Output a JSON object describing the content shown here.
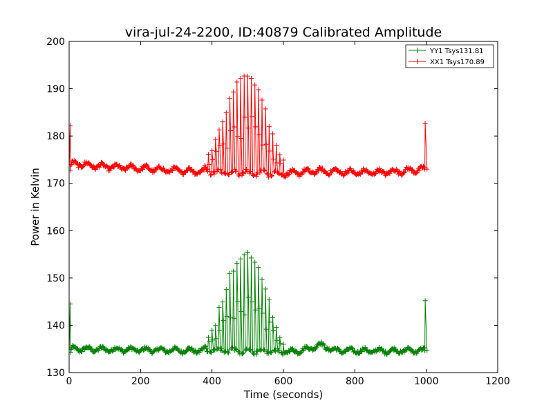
{
  "chart_data": {
    "type": "line",
    "title": "vira-jul-24-2200, ID:40879 Calibrated Amplitude",
    "xlabel": "Time (seconds)",
    "ylabel": "Power in Kelvin",
    "xlim": [
      0,
      1200
    ],
    "ylim": [
      130,
      200
    ],
    "xticks": [
      0,
      200,
      400,
      600,
      800,
      1000,
      1200
    ],
    "yticks": [
      130,
      140,
      150,
      160,
      170,
      180,
      190,
      200
    ],
    "xtick_labels": [
      "0",
      "200",
      "400",
      "600",
      "800",
      "1000",
      "1200"
    ],
    "ytick_labels": [
      "130",
      "140",
      "150",
      "160",
      "170",
      "180",
      "190",
      "200"
    ],
    "grid": false,
    "legend_position": "top-right",
    "marker": "+",
    "series": [
      {
        "name": "YY1 Tsys131.81",
        "color": "#008000",
        "baseline": [
          [
            0,
            134.3
          ],
          [
            10,
            135
          ],
          [
            100,
            134.9
          ],
          [
            200,
            134.8
          ],
          [
            300,
            134.7
          ],
          [
            400,
            134.7
          ],
          [
            500,
            134.5
          ],
          [
            600,
            134.4
          ],
          [
            640,
            134.6
          ],
          [
            680,
            135.2
          ],
          [
            700,
            136
          ],
          [
            720,
            135.4
          ],
          [
            740,
            134.7
          ],
          [
            800,
            134.6
          ],
          [
            900,
            134.6
          ],
          [
            1000,
            134.7
          ]
        ],
        "scan_peaks": [
          [
            380,
            136.5
          ],
          [
            400,
            139.5
          ],
          [
            410,
            141
          ],
          [
            420,
            143.8
          ],
          [
            430,
            145.8
          ],
          [
            440,
            148.5
          ],
          [
            450,
            151
          ],
          [
            460,
            152.5
          ],
          [
            470,
            153.5
          ],
          [
            480,
            155
          ],
          [
            490,
            155.5
          ],
          [
            500,
            155.5
          ],
          [
            510,
            155.2
          ],
          [
            520,
            154
          ],
          [
            530,
            152.5
          ],
          [
            540,
            150.5
          ],
          [
            550,
            148
          ],
          [
            560,
            145.5
          ],
          [
            570,
            142.5
          ],
          [
            580,
            140
          ],
          [
            590,
            137.5
          ],
          [
            600,
            136.5
          ]
        ],
        "spikes": [
          [
            3,
            144.5
          ],
          [
            997,
            145.2
          ]
        ],
        "fluctuation": 0.7
      },
      {
        "name": "XX1 Tsys170.89",
        "color": "#ff0000",
        "baseline": [
          [
            0,
            172.8
          ],
          [
            10,
            174.2
          ],
          [
            100,
            173.5
          ],
          [
            200,
            173.2
          ],
          [
            300,
            172.7
          ],
          [
            400,
            172.5
          ],
          [
            500,
            172.2
          ],
          [
            600,
            172
          ],
          [
            680,
            172.5
          ],
          [
            700,
            172.6
          ],
          [
            800,
            172.3
          ],
          [
            900,
            172.4
          ],
          [
            1000,
            173
          ]
        ],
        "scan_peaks": [
          [
            380,
            174.5
          ],
          [
            400,
            178
          ],
          [
            410,
            179.5
          ],
          [
            420,
            182
          ],
          [
            430,
            184
          ],
          [
            440,
            186
          ],
          [
            450,
            188.5
          ],
          [
            460,
            190
          ],
          [
            470,
            191.5
          ],
          [
            480,
            192.5
          ],
          [
            490,
            193.2
          ],
          [
            500,
            193
          ],
          [
            510,
            192.5
          ],
          [
            520,
            191.5
          ],
          [
            530,
            190
          ],
          [
            540,
            188
          ],
          [
            550,
            186
          ],
          [
            560,
            183
          ],
          [
            570,
            180.5
          ],
          [
            580,
            178.5
          ],
          [
            590,
            176.5
          ],
          [
            600,
            175
          ]
        ],
        "spikes": [
          [
            3,
            182.2
          ],
          [
            997,
            182.7
          ]
        ],
        "fluctuation": 0.8
      }
    ]
  }
}
